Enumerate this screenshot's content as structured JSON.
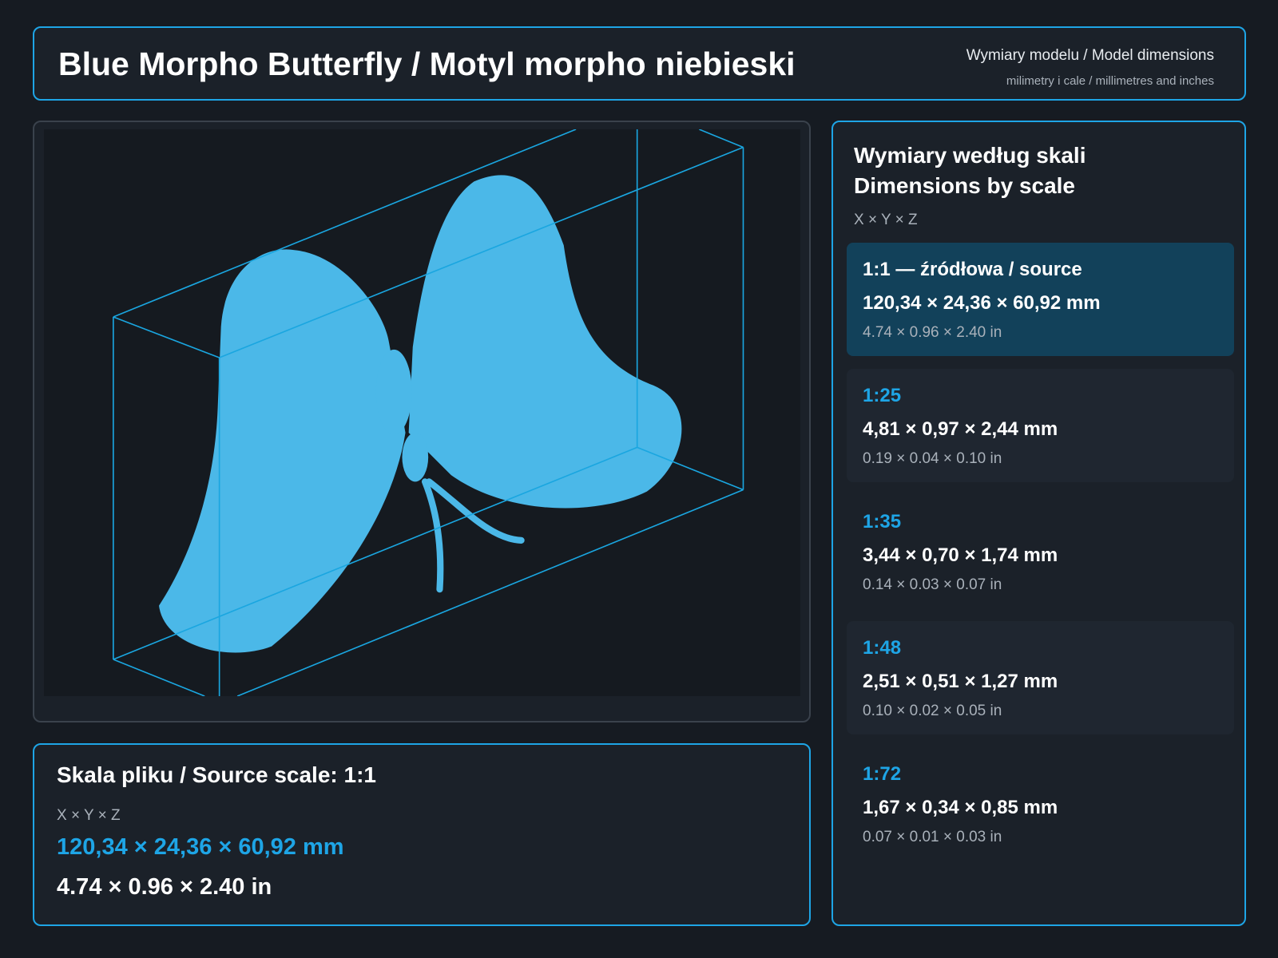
{
  "header": {
    "title": "Blue Morpho Butterfly / Motyl morpho niebieski",
    "subtitle": "Wymiary modelu / Model dimensions",
    "note": "milimetry i cale / millimetres and inches"
  },
  "source": {
    "title": "Skala pliku / Source scale: 1:1",
    "axes": "X × Y × Z",
    "mm": "120,34 × 24,36 × 60,92 mm",
    "inches": "4.74 × 0.96 × 2.40 in"
  },
  "scales": {
    "title_pl": "Wymiary według skali",
    "title_en": "Dimensions by scale",
    "axes": "X × Y × Z",
    "items": [
      {
        "label": "1:1  —  źródłowa / source",
        "mm": "120,34 × 24,36 × 60,92 mm",
        "inches": "4.74 × 0.96 × 2.40 in"
      },
      {
        "label": "1:25",
        "mm": "4,81 × 0,97 × 2,44 mm",
        "inches": "0.19 × 0.04 × 0.10 in"
      },
      {
        "label": "1:35",
        "mm": "3,44 × 0,70 × 1,74 mm",
        "inches": "0.14 × 0.03 × 0.07 in"
      },
      {
        "label": "1:48",
        "mm": "2,51 × 0,51 × 1,27 mm",
        "inches": "0.10 × 0.02 × 0.05 in"
      },
      {
        "label": "1:72",
        "mm": "1,67 × 0,34 × 0,85 mm",
        "inches": "0.07 × 0.01 × 0.03 in"
      }
    ]
  }
}
